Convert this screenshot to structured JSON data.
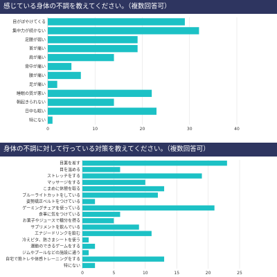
{
  "chart_data": [
    {
      "type": "bar",
      "orientation": "horizontal",
      "title": "感じている身体の不調を教えてください。（複数回答可）",
      "categories": [
        "目がぼやけてくる",
        "集中力が続かない",
        "足腰が弱い",
        "首が痛い",
        "肩が痛い",
        "背中が痛い",
        "腰が痛い",
        "足が痛い",
        "睡眠の質が悪い",
        "朝起きられない",
        "日中も眠い",
        "特にない"
      ],
      "values": [
        29,
        32,
        19,
        19,
        14,
        5,
        7,
        2,
        22,
        14,
        23,
        1
      ],
      "xticks": [
        0,
        10,
        20,
        30,
        40
      ],
      "xlim": [
        0,
        40
      ],
      "grid": true,
      "bar_color": "#1cc1c5"
    },
    {
      "type": "bar",
      "orientation": "horizontal",
      "title": "身体の不調に対して行っている対策を教えてください。（複数回答可）",
      "categories": [
        "目薬を差す",
        "目を温める",
        "ストレッチをする",
        "マッサージをする",
        "こまめに休憩を取る",
        "ブルーライトカットをしている",
        "姿勢矯正ベルトをつけている",
        "ゲーミングチェアを使っている",
        "食事に気をつけている",
        "お菓子やジュースで糖分を摂る",
        "サプリメントを飲んでいる",
        "エナジードリンクを飲む",
        "冷えピタ、熱さまシートを使う",
        "運動のできるゲームをする",
        "ジムやプールなどの施設に通う",
        "自宅で筋トレや体感トレーニングをする",
        "特にない"
      ],
      "values": [
        23,
        6,
        19,
        10,
        13,
        12,
        2,
        21,
        6,
        5,
        9,
        11,
        1,
        2,
        1,
        13,
        2
      ],
      "xticks": [
        0,
        5,
        10,
        15,
        20,
        25
      ],
      "xlim": [
        0,
        25
      ],
      "grid": true,
      "bar_color": "#1cc1c5"
    }
  ]
}
